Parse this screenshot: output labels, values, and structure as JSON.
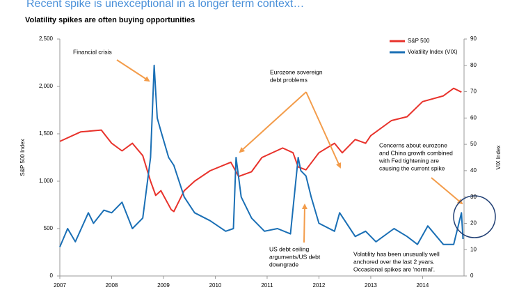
{
  "chart_data": {
    "type": "line",
    "title": "Recent spike is unexceptional in a longer term context…",
    "subtitle": "Volatility spikes are often buying opportunities",
    "ylabel": "S&P 500 Index",
    "y2label": "VIX Index",
    "xlim": [
      2007,
      2014.8
    ],
    "xticks": [
      2007,
      2008,
      2009,
      2010,
      2011,
      2012,
      2013,
      2014
    ],
    "ylim": [
      0,
      2500
    ],
    "yticks": [
      0,
      500,
      {
        "value": 1000,
        "label": "1,000"
      },
      {
        "value": 1500,
        "label": "1,500"
      },
      {
        "value": 2000,
        "label": "2,000"
      },
      {
        "value": 2500,
        "label": "2,500"
      }
    ],
    "y2lim": [
      0,
      90
    ],
    "y2ticks": [
      0,
      10,
      20,
      30,
      40,
      50,
      60,
      70,
      80,
      90
    ],
    "legend": "upper right",
    "series": [
      {
        "name": "S&P 500",
        "color": "#e8322b",
        "x": [
          2007.0,
          2007.4,
          2007.8,
          2008.0,
          2008.2,
          2008.4,
          2008.6,
          2008.75,
          2008.85,
          2008.95,
          2009.15,
          2009.2,
          2009.4,
          2009.6,
          2009.9,
          2010.3,
          2010.45,
          2010.7,
          2010.9,
          2011.3,
          2011.5,
          2011.6,
          2011.75,
          2012.0,
          2012.3,
          2012.45,
          2012.7,
          2012.9,
          2013.0,
          2013.4,
          2013.7,
          2014.0,
          2014.4,
          2014.6,
          2014.75
        ],
        "values": [
          1420,
          1520,
          1540,
          1400,
          1320,
          1400,
          1270,
          1000,
          850,
          900,
          700,
          680,
          900,
          1000,
          1110,
          1200,
          1050,
          1100,
          1250,
          1350,
          1300,
          1150,
          1120,
          1300,
          1400,
          1300,
          1440,
          1400,
          1480,
          1640,
          1680,
          1840,
          1900,
          1980,
          1940
        ]
      },
      {
        "name": "Volatility Index (VIX)",
        "color": "#1a6fb5",
        "axis": "y2",
        "x": [
          2007.0,
          2007.15,
          2007.3,
          2007.55,
          2007.65,
          2007.85,
          2008.0,
          2008.2,
          2008.4,
          2008.6,
          2008.75,
          2008.82,
          2008.88,
          2008.95,
          2009.1,
          2009.2,
          2009.4,
          2009.6,
          2009.9,
          2010.2,
          2010.35,
          2010.4,
          2010.5,
          2010.7,
          2010.95,
          2011.2,
          2011.45,
          2011.6,
          2011.65,
          2011.75,
          2011.85,
          2012.0,
          2012.3,
          2012.4,
          2012.7,
          2012.9,
          2013.1,
          2013.45,
          2013.7,
          2013.9,
          2014.1,
          2014.4,
          2014.6,
          2014.75,
          2014.78
        ],
        "values": [
          11,
          18,
          13,
          24,
          20,
          25,
          24,
          28,
          18,
          22,
          45,
          80,
          60,
          55,
          45,
          42,
          30,
          24,
          21,
          17,
          18,
          45,
          30,
          22,
          17,
          18,
          16,
          45,
          40,
          38,
          30,
          20,
          17,
          24,
          15,
          17,
          13,
          18,
          15,
          12,
          19,
          12,
          12,
          24,
          14
        ]
      }
    ],
    "annotations": [
      {
        "lines": [
          "Financial crisis"
        ]
      },
      {
        "lines": [
          "Eurozone sovereign",
          "debt problems"
        ]
      },
      {
        "lines": [
          "US debt ceiling",
          "arguments/US debt",
          "downgrade"
        ]
      },
      {
        "lines": [
          "Concerns about eurozone",
          "and China growth combined",
          "with Fed tightening are",
          "causing the current spike"
        ]
      },
      {
        "lines": [
          "Volatility has been unusually well",
          "anchored over the last 2 years.",
          "Occasional spikes are 'normal'."
        ]
      }
    ]
  }
}
